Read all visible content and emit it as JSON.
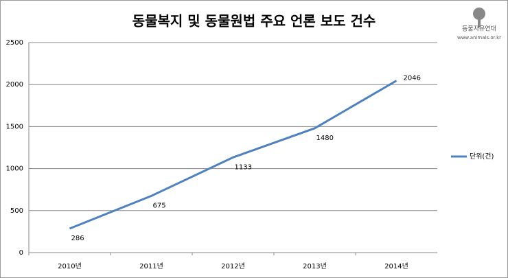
{
  "chart_data": {
    "type": "line",
    "title": "동물복지 및 동물원법 주요 언론 보도 건수",
    "categories": [
      "2010년",
      "2011년",
      "2012년",
      "2013년",
      "2014년"
    ],
    "series": [
      {
        "name": "단위(건)",
        "color": "#4f81bd",
        "values": [
          286,
          675,
          1133,
          1480,
          2046
        ]
      }
    ],
    "ylim": [
      0,
      2500
    ],
    "yticks": [
      0,
      500,
      1000,
      1500,
      2000,
      2500
    ],
    "grid": true,
    "legend": "right"
  },
  "logo": {
    "name": "동물자유연대",
    "url": "www.animals.or.kr"
  }
}
